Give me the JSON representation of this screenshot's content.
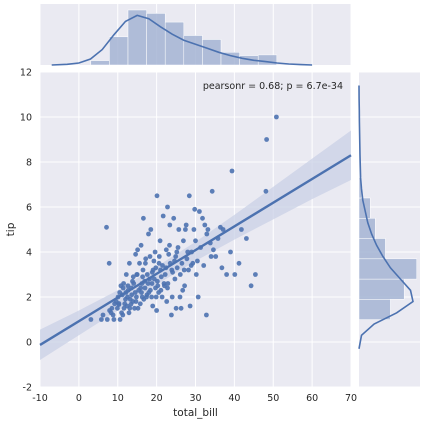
{
  "colors": {
    "panel": "#EAEAF2",
    "grid": "#FFFFFF",
    "marker": "#4C72B0",
    "bar_fill": "#A5B4D4",
    "band": "#C9D0E6",
    "text": "#262626"
  },
  "chart_data": {
    "type": "scatter",
    "title": "",
    "xlabel": "total_bill",
    "ylabel": "tip",
    "xlim": [
      -10,
      70
    ],
    "ylim": [
      -2,
      12
    ],
    "xticks": [
      "-10",
      "0",
      "10",
      "20",
      "30",
      "40",
      "50",
      "60",
      "70"
    ],
    "yticks": [
      "-2",
      "0",
      "2",
      "4",
      "6",
      "8",
      "10",
      "12"
    ],
    "grid": true,
    "annotation": "pearsonr = 0.68; p = 6.7e-34",
    "points": [
      [
        10.3,
        1.66
      ],
      [
        10.3,
        1.71
      ],
      [
        12.5,
        2.0
      ],
      [
        14.8,
        2.0
      ],
      [
        16.3,
        2.0
      ],
      [
        17.5,
        2.1
      ],
      [
        18.2,
        2.8
      ],
      [
        15.0,
        3.0
      ],
      [
        16.5,
        3.2
      ],
      [
        19.8,
        3.3
      ],
      [
        21.0,
        3.2
      ],
      [
        13.4,
        1.68
      ],
      [
        11.2,
        2.1
      ],
      [
        14.1,
        2.6
      ],
      [
        15.9,
        2.4
      ],
      [
        17.8,
        2.6
      ],
      [
        20.3,
        2.5
      ],
      [
        22.8,
        2.4
      ],
      [
        24.1,
        3.1
      ],
      [
        25.3,
        3.3
      ],
      [
        26.5,
        3.5
      ],
      [
        28.9,
        3.4
      ],
      [
        30.2,
        3.0
      ],
      [
        32.1,
        3.4
      ],
      [
        35.2,
        3.8
      ],
      [
        38.0,
        3.0
      ],
      [
        40.1,
        3.0
      ],
      [
        41.2,
        3.5
      ],
      [
        43.1,
        4.6
      ],
      [
        45.4,
        3.0
      ],
      [
        48.3,
        9.0
      ],
      [
        50.8,
        10.0
      ],
      [
        48.1,
        6.7
      ],
      [
        39.4,
        7.6
      ],
      [
        29.8,
        5.9
      ],
      [
        28.4,
        6.5
      ],
      [
        25.2,
        4.0
      ],
      [
        23.4,
        5.2
      ],
      [
        20.9,
        4.5
      ],
      [
        19.6,
        4.0
      ],
      [
        18.3,
        3.8
      ],
      [
        17.1,
        3.5
      ],
      [
        16.0,
        4.3
      ],
      [
        15.1,
        4.1
      ],
      [
        14.6,
        3.9
      ],
      [
        13.0,
        3.5
      ],
      [
        12.2,
        3.0
      ],
      [
        11.4,
        2.4
      ],
      [
        10.1,
        2.0
      ],
      [
        9.6,
        1.8
      ],
      [
        8.5,
        1.5
      ],
      [
        7.9,
        1.4
      ],
      [
        7.3,
        1.0
      ],
      [
        6.2,
        1.2
      ],
      [
        5.8,
        1.0
      ],
      [
        3.1,
        1.0
      ],
      [
        7.8,
        3.5
      ],
      [
        7.1,
        5.1
      ],
      [
        20.1,
        6.5
      ],
      [
        22.8,
        6.0
      ],
      [
        25.7,
        5.0
      ],
      [
        31.8,
        5.5
      ],
      [
        34.3,
        6.7
      ],
      [
        33.2,
        5.0
      ],
      [
        26.9,
        4.5
      ],
      [
        27.4,
        5.0
      ],
      [
        24.6,
        3.6
      ],
      [
        23.5,
        3.5
      ],
      [
        22.2,
        3.0
      ],
      [
        21.2,
        2.9
      ],
      [
        19.4,
        2.8
      ],
      [
        18.8,
        2.6
      ],
      [
        18.0,
        2.2
      ],
      [
        17.4,
        2.0
      ],
      [
        16.7,
        1.9
      ],
      [
        15.8,
        1.7
      ],
      [
        15.2,
        1.5
      ],
      [
        14.3,
        1.5
      ],
      [
        13.9,
        1.8
      ],
      [
        12.9,
        1.3
      ],
      [
        12.4,
        1.6
      ],
      [
        11.6,
        1.5
      ],
      [
        11.0,
        1.3
      ],
      [
        10.6,
        1.0
      ],
      [
        9.9,
        1.5
      ],
      [
        9.2,
        1.7
      ],
      [
        8.8,
        1.2
      ],
      [
        24.0,
        2.0
      ],
      [
        26.0,
        2.0
      ],
      [
        27.2,
        2.5
      ],
      [
        28.2,
        3.2
      ],
      [
        29.0,
        4.0
      ],
      [
        30.5,
        3.6
      ],
      [
        31.3,
        4.2
      ],
      [
        32.9,
        4.8
      ],
      [
        34.6,
        4.1
      ],
      [
        35.8,
        4.6
      ],
      [
        22.5,
        4.1
      ],
      [
        20.7,
        3.8
      ],
      [
        19.1,
        3.2
      ],
      [
        17.6,
        3.0
      ],
      [
        16.9,
        2.7
      ],
      [
        16.2,
        2.6
      ],
      [
        15.4,
        2.3
      ],
      [
        14.5,
        2.2
      ],
      [
        13.6,
        2.1
      ],
      [
        13.2,
        1.9
      ],
      [
        12.7,
        2.3
      ],
      [
        12.0,
        1.9
      ],
      [
        11.8,
        1.7
      ],
      [
        11.5,
        2.6
      ],
      [
        10.8,
        2.5
      ],
      [
        18.7,
        2.0
      ],
      [
        19.9,
        2.0
      ],
      [
        20.5,
        2.2
      ],
      [
        21.5,
        3.4
      ],
      [
        22.0,
        2.5
      ],
      [
        23.1,
        3.9
      ],
      [
        23.9,
        3.2
      ],
      [
        24.9,
        3.8
      ],
      [
        27.8,
        3.7
      ],
      [
        29.6,
        5.0
      ],
      [
        31.0,
        5.8
      ],
      [
        32.4,
        5.2
      ],
      [
        33.8,
        4.4
      ],
      [
        36.4,
        5.1
      ],
      [
        37.1,
        5.0
      ],
      [
        30.7,
        2.0
      ],
      [
        26.3,
        1.5
      ],
      [
        17.9,
        4.8
      ],
      [
        16.6,
        5.5
      ],
      [
        18.5,
        5.0
      ],
      [
        21.7,
        5.6
      ],
      [
        28.0,
        4.0
      ],
      [
        30.0,
        4.5
      ],
      [
        25.5,
        4.2
      ],
      [
        14.9,
        3.0
      ],
      [
        13.8,
        2.7
      ],
      [
        12.6,
        2.5
      ],
      [
        19.0,
        1.6
      ],
      [
        20.0,
        1.4
      ],
      [
        21.4,
        2.0
      ],
      [
        22.6,
        1.8
      ],
      [
        23.8,
        1.2
      ],
      [
        25.0,
        1.5
      ],
      [
        26.7,
        2.3
      ],
      [
        28.6,
        1.6
      ],
      [
        32.8,
        1.2
      ],
      [
        15.6,
        3.5
      ],
      [
        17.2,
        3.7
      ],
      [
        19.3,
        3.6
      ],
      [
        20.6,
        3.5
      ],
      [
        22.4,
        3.3
      ],
      [
        23.3,
        4.3
      ],
      [
        24.4,
        5.5
      ],
      [
        27.6,
        5.2
      ],
      [
        29.3,
        3.5
      ],
      [
        34.0,
        3.8
      ],
      [
        36.8,
        3.3
      ],
      [
        39.0,
        4.0
      ],
      [
        44.3,
        2.5
      ],
      [
        41.8,
        5.0
      ],
      [
        16.4,
        2.9
      ],
      [
        18.9,
        3.1
      ],
      [
        20.2,
        2.7
      ],
      [
        21.9,
        2.6
      ],
      [
        24.7,
        2.8
      ],
      [
        26.1,
        3.0
      ],
      [
        27.1,
        3.2
      ],
      [
        11.3,
        1.2
      ],
      [
        9.0,
        1.0
      ],
      [
        8.3,
        1.3
      ],
      [
        10.5,
        2.2
      ],
      [
        12.1,
        2.2
      ],
      [
        13.5,
        2.4
      ],
      [
        14.0,
        2.9
      ],
      [
        13.1,
        1.5
      ],
      [
        14.7,
        1.8
      ],
      [
        16.1,
        2.2
      ],
      [
        17.0,
        2.4
      ],
      [
        18.4,
        2.3
      ],
      [
        19.7,
        2.4
      ],
      [
        21.1,
        2.3
      ],
      [
        22.9,
        2.6
      ]
    ],
    "regression_line": {
      "x": [
        -10,
        70
      ],
      "y": [
        -0.13,
        8.3
      ]
    },
    "confidence_band": {
      "x": [
        -10,
        0,
        10,
        20,
        30,
        40,
        50,
        60,
        70
      ],
      "upper": [
        0.55,
        1.4,
        2.3,
        3.35,
        4.45,
        5.65,
        6.9,
        8.15,
        9.4
      ],
      "lower": [
        -0.8,
        0.3,
        1.4,
        2.55,
        3.6,
        4.55,
        5.45,
        6.35,
        7.2
      ]
    },
    "marginal_x": {
      "bins": [
        3.07,
        7.86,
        12.64,
        17.43,
        22.21,
        27.0,
        31.78,
        36.57,
        41.35,
        46.14,
        50.92
      ],
      "density": [
        0.0065,
        0.042,
        0.082,
        0.077,
        0.064,
        0.044,
        0.038,
        0.019,
        0.014,
        0.015
      ],
      "kde_x": [
        -7,
        -3,
        0,
        3,
        6,
        9,
        12,
        15,
        18,
        21,
        24,
        27,
        30,
        33,
        36,
        39,
        42,
        45,
        48,
        51,
        54,
        57,
        60
      ],
      "kde_y": [
        0.0,
        0.001,
        0.003,
        0.009,
        0.023,
        0.045,
        0.065,
        0.074,
        0.069,
        0.057,
        0.046,
        0.037,
        0.031,
        0.025,
        0.019,
        0.014,
        0.01,
        0.007,
        0.005,
        0.003,
        0.0015,
        0.0006,
        0.0
      ]
    },
    "marginal_y": {
      "bins": [
        1.0,
        1.9,
        2.8,
        3.7,
        4.6,
        5.5,
        6.4,
        7.3,
        8.2,
        9.1,
        10.0
      ],
      "density": [
        0.25,
        0.36,
        0.46,
        0.21,
        0.13,
        0.09,
        0.02,
        0.005,
        0.005,
        0.005
      ],
      "kde_y": [
        -0.3,
        0.3,
        0.8,
        1.3,
        1.8,
        2.3,
        2.8,
        3.3,
        3.8,
        4.3,
        4.8,
        5.3,
        5.8,
        6.3,
        6.8,
        7.3,
        7.8,
        8.3,
        8.8,
        9.3,
        9.8,
        10.3,
        10.8,
        11.4
      ],
      "kde_x": [
        0.0,
        0.02,
        0.12,
        0.3,
        0.43,
        0.41,
        0.33,
        0.25,
        0.19,
        0.14,
        0.1,
        0.07,
        0.05,
        0.03,
        0.02,
        0.013,
        0.01,
        0.008,
        0.006,
        0.005,
        0.003,
        0.002,
        0.001,
        0.0
      ]
    }
  }
}
